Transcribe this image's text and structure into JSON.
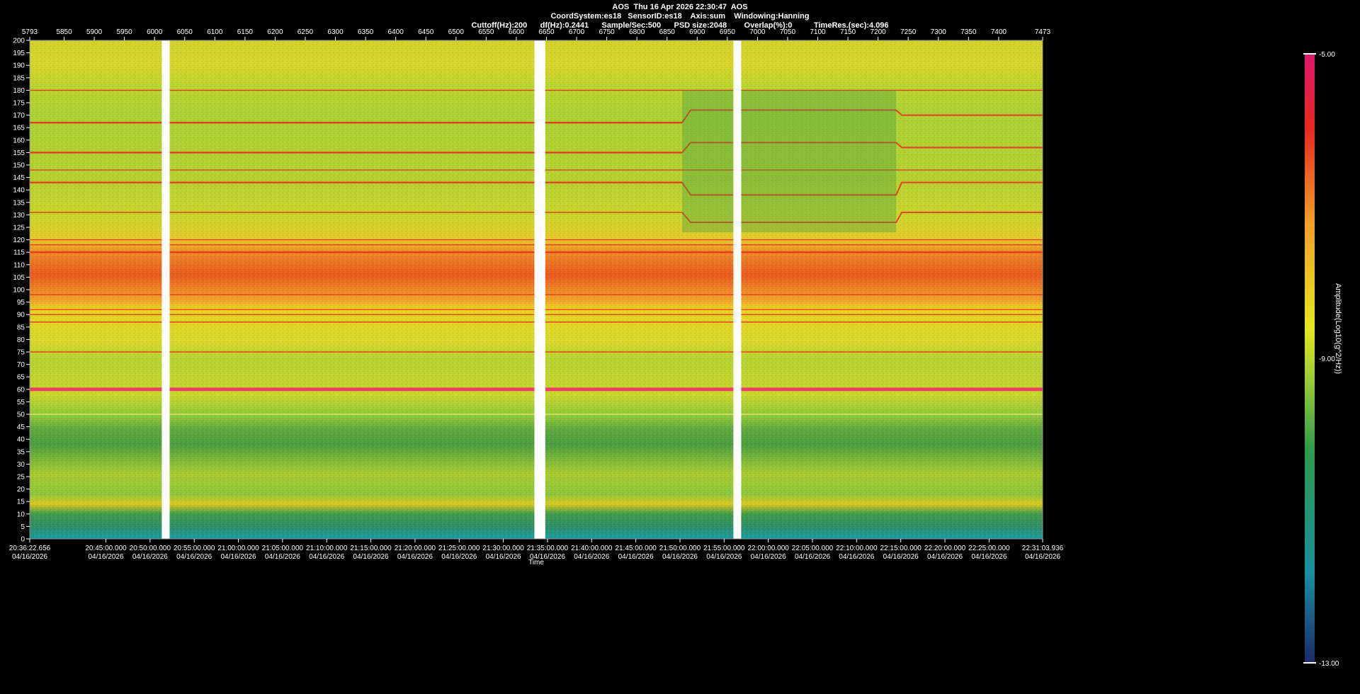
{
  "header": {
    "line1": "AOS  Thu 16 Apr 2026 22:30:47  AOS",
    "line2": "CoordSystem:es18   SensorID:es18    Axis:sum    Windowing:Hanning",
    "line3": "Cuttoff(Hz):200      df(Hz):0.2441      Sample/Sec:500      PSD size:2048        Overlap(%):0          TimeRes.(sec):4.096"
  },
  "chart_data": {
    "type": "heatmap",
    "top_axis": {
      "range": [
        5793,
        7473
      ],
      "ticks": [
        "5793",
        "5850",
        "5900",
        "5950",
        "6000",
        "6050",
        "6100",
        "6150",
        "6200",
        "6250",
        "6300",
        "6350",
        "6400",
        "6450",
        "6500",
        "6550",
        "6600",
        "6650",
        "6700",
        "6750",
        "6800",
        "6850",
        "6900",
        "6950",
        "7000",
        "7050",
        "7100",
        "7150",
        "7200",
        "7250",
        "7300",
        "7350",
        "7400",
        "7473"
      ]
    },
    "y_axis": {
      "range": [
        0,
        200
      ],
      "ticks": [
        "0",
        "5",
        "10",
        "15",
        "20",
        "25",
        "30",
        "35",
        "40",
        "45",
        "50",
        "55",
        "60",
        "65",
        "70",
        "75",
        "80",
        "85",
        "90",
        "95",
        "100",
        "105",
        "110",
        "115",
        "120",
        "125",
        "130",
        "135",
        "140",
        "145",
        "150",
        "155",
        "160",
        "165",
        "170",
        "175",
        "180",
        "185",
        "190",
        "195",
        "200"
      ]
    },
    "x_axis": {
      "label": "Time",
      "ticks": [
        {
          "time": "20:36:22.656",
          "date": "04/16/2026"
        },
        {
          "time": "20:45:00.000",
          "date": "04/16/2026"
        },
        {
          "time": "20:50:00.000",
          "date": "04/16/2026"
        },
        {
          "time": "20:55:00.000",
          "date": "04/16/2026"
        },
        {
          "time": "21:00:00.000",
          "date": "04/16/2026"
        },
        {
          "time": "21:05:00.000",
          "date": "04/16/2026"
        },
        {
          "time": "21:10:00.000",
          "date": "04/16/2026"
        },
        {
          "time": "21:15:00.000",
          "date": "04/16/2026"
        },
        {
          "time": "21:20:00.000",
          "date": "04/16/2026"
        },
        {
          "time": "21:25:00.000",
          "date": "04/16/2026"
        },
        {
          "time": "21:30:00.000",
          "date": "04/16/2026"
        },
        {
          "time": "21:35:00.000",
          "date": "04/16/2026"
        },
        {
          "time": "21:40:00.000",
          "date": "04/16/2026"
        },
        {
          "time": "21:45:00.000",
          "date": "04/16/2026"
        },
        {
          "time": "21:50:00.000",
          "date": "04/16/2026"
        },
        {
          "time": "21:55:00.000",
          "date": "04/16/2026"
        },
        {
          "time": "22:00:00.000",
          "date": "04/16/2026"
        },
        {
          "time": "22:05:00.000",
          "date": "04/16/2026"
        },
        {
          "time": "22:10:00.000",
          "date": "04/16/2026"
        },
        {
          "time": "22:15:00.000",
          "date": "04/16/2026"
        },
        {
          "time": "22:20:00.000",
          "date": "04/16/2026"
        },
        {
          "time": "22:25:00.000",
          "date": "04/16/2026"
        },
        {
          "time": "22:31:03.936",
          "date": "04/16/2026"
        }
      ]
    },
    "colorbar": {
      "label": "Amplitude(Log10(g^2/Hz))",
      "max": "-5.00",
      "mid": "-9.00",
      "min": "-13.00",
      "colors": [
        "#1a2a6c",
        "#1a8fa0",
        "#2f9a4a",
        "#8cc63a",
        "#e6e61e",
        "#f0a028",
        "#e6281e",
        "#e0186e"
      ]
    },
    "gaps_index": [
      [
        6012,
        6025
      ],
      [
        6630,
        6648
      ],
      [
        6960,
        6973
      ]
    ],
    "spectral_lines_hz": [
      180,
      167,
      155,
      148,
      143,
      131,
      120,
      118,
      115,
      98,
      92,
      90,
      87,
      75,
      60,
      50
    ],
    "shifted_lines": [
      {
        "before_hz": 167,
        "during_hz": 172,
        "after_hz": 170
      },
      {
        "before_hz": 155,
        "during_hz": 159,
        "after_hz": 157
      },
      {
        "before_hz": 143,
        "during_hz": 138,
        "after_hz": 143
      },
      {
        "before_hz": 131,
        "during_hz": 127,
        "after_hz": 131
      }
    ],
    "event_index_range": [
      6875,
      7230
    ],
    "grid": false
  }
}
